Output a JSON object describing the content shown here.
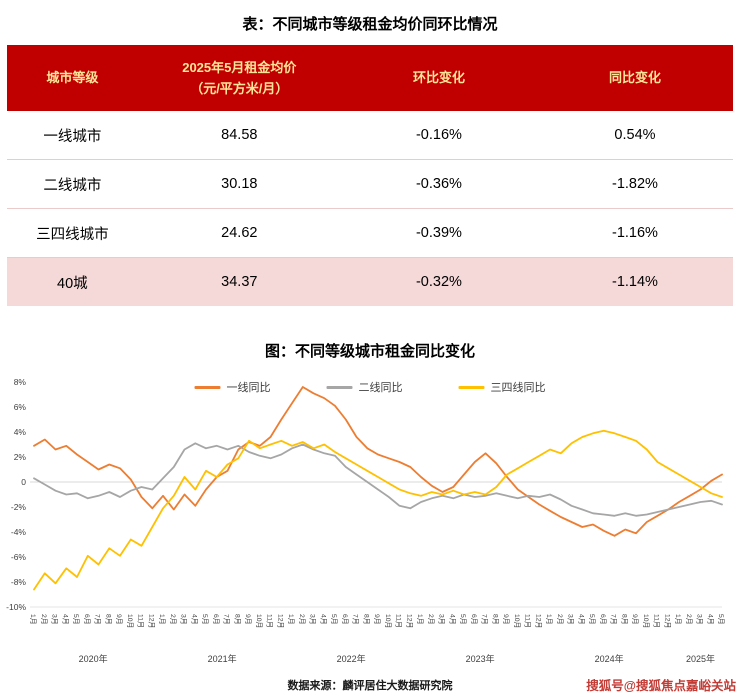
{
  "page": {
    "table_title": "表：不同城市等级租金均价同环比情况",
    "chart_title": "图：不同等级城市租金同比变化",
    "source": "数据来源：麟评居住大数据研究院",
    "watermark": "搜狐号@搜狐焦点嘉峪关站"
  },
  "colors": {
    "header_bg": "#C00000",
    "header_text": "#FFE599",
    "highlight_row_bg": "#F5D8D8",
    "tier1_line": "#ED7D31",
    "tier2_line": "#A6A6A6",
    "tier34_line": "#FFC000"
  },
  "table": {
    "headers": [
      [
        "城市等级"
      ],
      [
        "2025年5月租金均价",
        "（元/平方米/月）"
      ],
      [
        "环比变化"
      ],
      [
        "同比变化"
      ]
    ],
    "rows": [
      [
        "一线城市",
        "84.58",
        "-0.16%",
        "0.54%"
      ],
      [
        "二线城市",
        "30.18",
        "-0.36%",
        "-1.82%"
      ],
      [
        "三四线城市",
        "24.62",
        "-0.39%",
        "-1.16%"
      ],
      [
        "40城",
        "34.37",
        "-0.32%",
        "-1.14%"
      ]
    ]
  },
  "chart_data": {
    "type": "line",
    "title": "图：不同等级城市租金同比变化",
    "xlabel": "",
    "ylabel": "",
    "ylim": [
      -10,
      8
    ],
    "ytick_step": 2,
    "y_ticks": [
      8,
      6,
      4,
      2,
      0,
      -2,
      -4,
      -6,
      -8,
      -10
    ],
    "y_tick_labels": [
      "8%",
      "6%",
      "4%",
      "2%",
      "0",
      "-2%",
      "-4%",
      "-6%",
      "-8%",
      "-10%"
    ],
    "grid": "zero-line-only",
    "legend_position": "top-center",
    "x_tick_labels": [
      "1月",
      "2月",
      "3月",
      "4月",
      "5月",
      "6月",
      "7月",
      "8月",
      "9月",
      "10月",
      "11月",
      "12月",
      "1月",
      "2月",
      "3月",
      "4月",
      "5月",
      "6月",
      "7月",
      "8月",
      "9月",
      "10月",
      "11月",
      "12月",
      "1月",
      "2月",
      "3月",
      "4月",
      "5月",
      "6月",
      "7月",
      "8月",
      "9月",
      "10月",
      "11月",
      "12月",
      "1月",
      "2月",
      "3月",
      "4月",
      "5月",
      "6月",
      "7月",
      "8月",
      "9月",
      "10月",
      "11月",
      "12月",
      "1月",
      "2月",
      "3月",
      "4月",
      "5月",
      "6月",
      "7月",
      "8月",
      "9月",
      "10月",
      "11月",
      "12月",
      "1月",
      "2月",
      "3月",
      "4月",
      "5月"
    ],
    "x_year_labels": [
      {
        "label": "2020年",
        "start": 0,
        "end": 11
      },
      {
        "label": "2021年",
        "start": 12,
        "end": 23
      },
      {
        "label": "2022年",
        "start": 24,
        "end": 35
      },
      {
        "label": "2023年",
        "start": 36,
        "end": 47
      },
      {
        "label": "2024年",
        "start": 48,
        "end": 59
      },
      {
        "label": "2025年",
        "start": 60,
        "end": 64
      }
    ],
    "series": [
      {
        "name": "一线同比",
        "color": "#ED7D31",
        "values": [
          2.9,
          3.4,
          2.6,
          2.9,
          2.2,
          1.6,
          1.0,
          1.4,
          1.1,
          0.2,
          -1.2,
          -2.1,
          -1.1,
          -2.2,
          -1.0,
          -1.9,
          -0.6,
          0.4,
          0.9,
          2.6,
          3.2,
          2.9,
          3.6,
          5.0,
          6.3,
          7.6,
          7.1,
          6.7,
          6.1,
          5.0,
          3.6,
          2.7,
          2.2,
          1.9,
          1.6,
          1.2,
          0.4,
          -0.3,
          -0.8,
          -0.4,
          0.6,
          1.6,
          2.3,
          1.5,
          0.4,
          -0.6,
          -1.2,
          -1.8,
          -2.3,
          -2.8,
          -3.2,
          -3.6,
          -3.4,
          -3.9,
          -4.3,
          -3.8,
          -4.1,
          -3.2,
          -2.7,
          -2.2,
          -1.6,
          -1.1,
          -0.6,
          0.1,
          0.6
        ]
      },
      {
        "name": "二线同比",
        "color": "#A6A6A6",
        "values": [
          0.3,
          -0.2,
          -0.7,
          -1.0,
          -0.9,
          -1.3,
          -1.1,
          -0.8,
          -1.2,
          -0.7,
          -0.4,
          -0.6,
          0.3,
          1.2,
          2.6,
          3.1,
          2.7,
          2.9,
          2.6,
          2.9,
          2.4,
          2.1,
          1.9,
          2.2,
          2.7,
          3.0,
          2.6,
          2.3,
          2.1,
          1.2,
          0.6,
          0.0,
          -0.6,
          -1.2,
          -1.9,
          -2.1,
          -1.6,
          -1.3,
          -1.1,
          -1.3,
          -1.0,
          -1.2,
          -1.1,
          -0.9,
          -1.1,
          -1.3,
          -1.1,
          -1.2,
          -1.0,
          -1.4,
          -1.9,
          -2.2,
          -2.5,
          -2.6,
          -2.7,
          -2.5,
          -2.7,
          -2.6,
          -2.4,
          -2.2,
          -2.0,
          -1.8,
          -1.6,
          -1.5,
          -1.8
        ]
      },
      {
        "name": "三四线同比",
        "color": "#FFC000",
        "values": [
          -8.6,
          -7.3,
          -8.1,
          -6.9,
          -7.6,
          -5.9,
          -6.6,
          -5.3,
          -5.9,
          -4.6,
          -5.1,
          -3.6,
          -2.1,
          -1.1,
          0.4,
          -0.6,
          0.9,
          0.4,
          1.4,
          1.9,
          3.3,
          2.7,
          3.0,
          3.3,
          2.9,
          3.2,
          2.7,
          3.0,
          2.4,
          1.9,
          1.4,
          0.9,
          0.4,
          -0.1,
          -0.6,
          -0.9,
          -1.1,
          -0.8,
          -1.0,
          -0.7,
          -1.0,
          -0.8,
          -1.0,
          -0.4,
          0.6,
          1.1,
          1.6,
          2.1,
          2.6,
          2.3,
          3.1,
          3.6,
          3.9,
          4.1,
          3.9,
          3.6,
          3.3,
          2.6,
          1.6,
          1.1,
          0.6,
          0.1,
          -0.4,
          -0.9,
          -1.2
        ]
      }
    ]
  }
}
